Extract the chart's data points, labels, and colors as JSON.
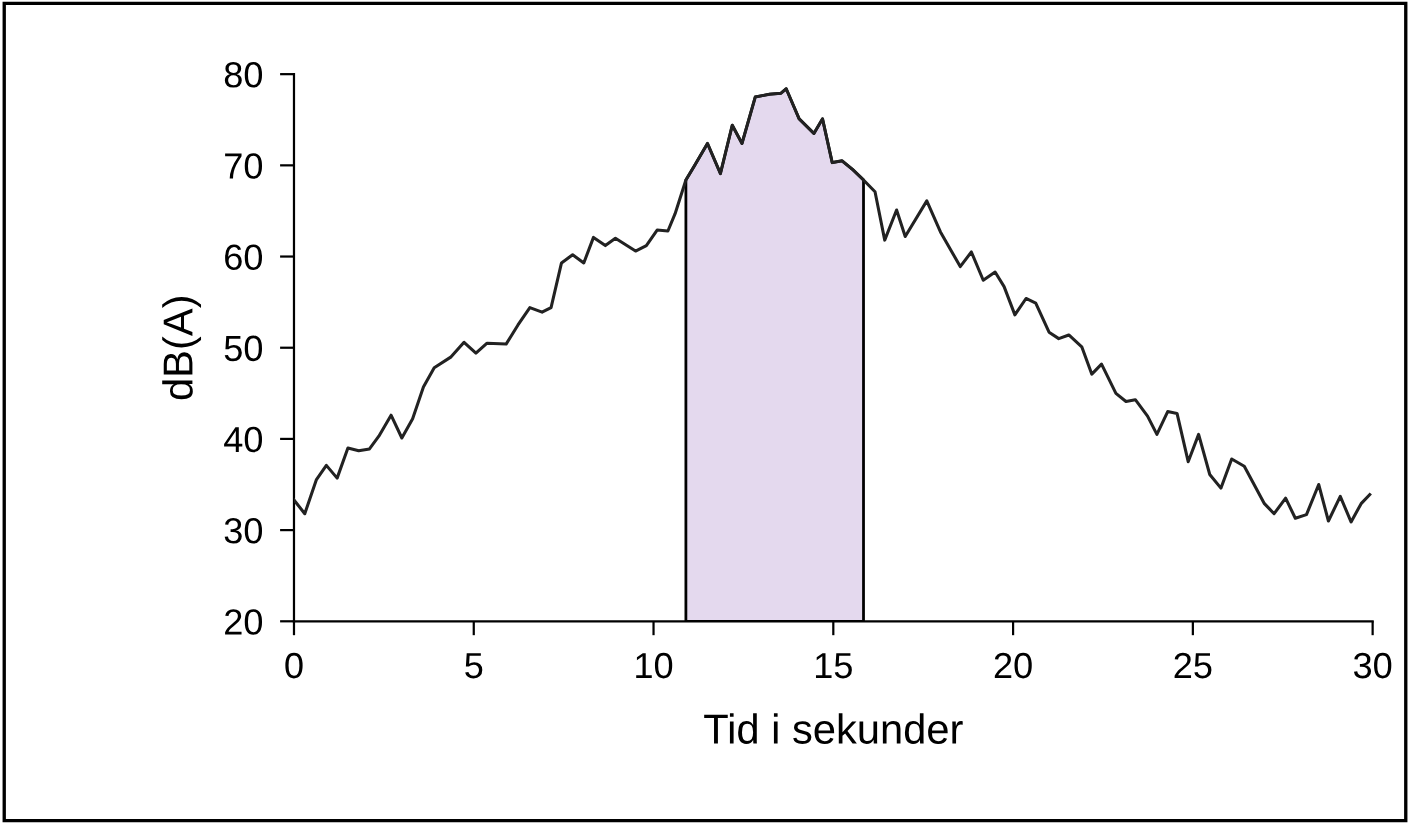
{
  "chart_data": {
    "type": "line",
    "xlabel": "Tid i sekunder",
    "ylabel": "dB(A)",
    "xlim": [
      0,
      30
    ],
    "xticks": [
      0,
      5,
      10,
      15,
      20,
      25,
      30
    ],
    "ylim": [
      20,
      80
    ],
    "yticks": [
      20,
      30,
      40,
      50,
      60,
      70,
      80
    ],
    "grid": false,
    "marker": "none",
    "line_style": "solid",
    "series": [
      {
        "type": "area",
        "color": "#e4d9ee",
        "x": [
          10.9,
          11.13,
          11.5,
          11.86,
          12.19,
          12.46,
          12.83,
          13.23,
          13.54,
          13.69,
          14.05,
          14.46,
          14.7,
          14.97,
          15.24,
          15.55,
          15.84
        ],
        "values": [
          68.4,
          69.9,
          72.4,
          69.1,
          74.4,
          72.4,
          77.5,
          77.8,
          77.9,
          78.4,
          75.1,
          73.5,
          75.1,
          70.3,
          70.5,
          69.5,
          68.4
        ]
      },
      {
        "color": "#222222",
        "x": [
          0,
          0.3,
          0.62,
          0.9,
          1.2,
          1.5,
          1.8,
          2.1,
          2.36,
          2.7,
          3.0,
          3.3,
          3.6,
          3.9,
          4.37,
          4.73,
          5.06,
          5.37,
          5.9,
          6.23,
          6.56,
          6.9,
          7.15,
          7.44,
          7.75,
          8.06,
          8.33,
          8.66,
          8.94,
          9.5,
          9.8,
          10.1,
          10.4,
          10.6,
          10.9,
          11.13,
          11.5,
          11.86,
          12.19,
          12.46,
          12.83,
          13.23,
          13.54,
          13.69,
          14.05,
          14.46,
          14.7,
          14.97,
          15.24,
          15.55,
          15.84,
          16.16,
          16.43,
          16.76,
          17.0,
          17.6,
          17.98,
          18.53,
          18.84,
          19.17,
          19.5,
          19.75,
          20.05,
          20.36,
          20.63,
          21.0,
          21.27,
          21.55,
          21.91,
          22.19,
          22.46,
          22.86,
          23.14,
          23.4,
          23.74,
          24.0,
          24.3,
          24.56,
          24.87,
          25.16,
          25.47,
          25.78,
          26.08,
          26.43,
          26.99,
          27.26,
          27.58,
          27.85,
          28.16,
          28.5,
          28.77,
          29.1,
          29.4,
          29.68,
          29.92
        ],
        "values": [
          33.3,
          31.8,
          35.5,
          37.1,
          35.7,
          39.0,
          38.7,
          38.9,
          40.3,
          42.6,
          40.1,
          42.2,
          45.7,
          47.8,
          49.0,
          50.6,
          49.4,
          50.5,
          50.4,
          52.5,
          54.4,
          53.9,
          54.4,
          59.3,
          60.2,
          59.3,
          62.1,
          61.2,
          62.0,
          60.6,
          61.2,
          62.9,
          62.8,
          64.7,
          68.4,
          69.9,
          72.4,
          69.1,
          74.4,
          72.4,
          77.5,
          77.8,
          77.9,
          78.4,
          75.1,
          73.5,
          75.1,
          70.3,
          70.5,
          69.5,
          68.4,
          67.1,
          61.8,
          65.1,
          62.2,
          66.1,
          62.7,
          58.9,
          60.5,
          57.4,
          58.3,
          56.7,
          53.6,
          55.4,
          54.9,
          51.7,
          51.0,
          51.4,
          50.1,
          47.1,
          48.2,
          45.0,
          44.1,
          44.3,
          42.5,
          40.5,
          43.0,
          42.8,
          37.5,
          40.5,
          36.1,
          34.6,
          37.8,
          37.0,
          32.9,
          31.8,
          33.5,
          31.3,
          31.7,
          35.0,
          31.0,
          33.7,
          30.9,
          32.9,
          33.9
        ]
      }
    ]
  }
}
